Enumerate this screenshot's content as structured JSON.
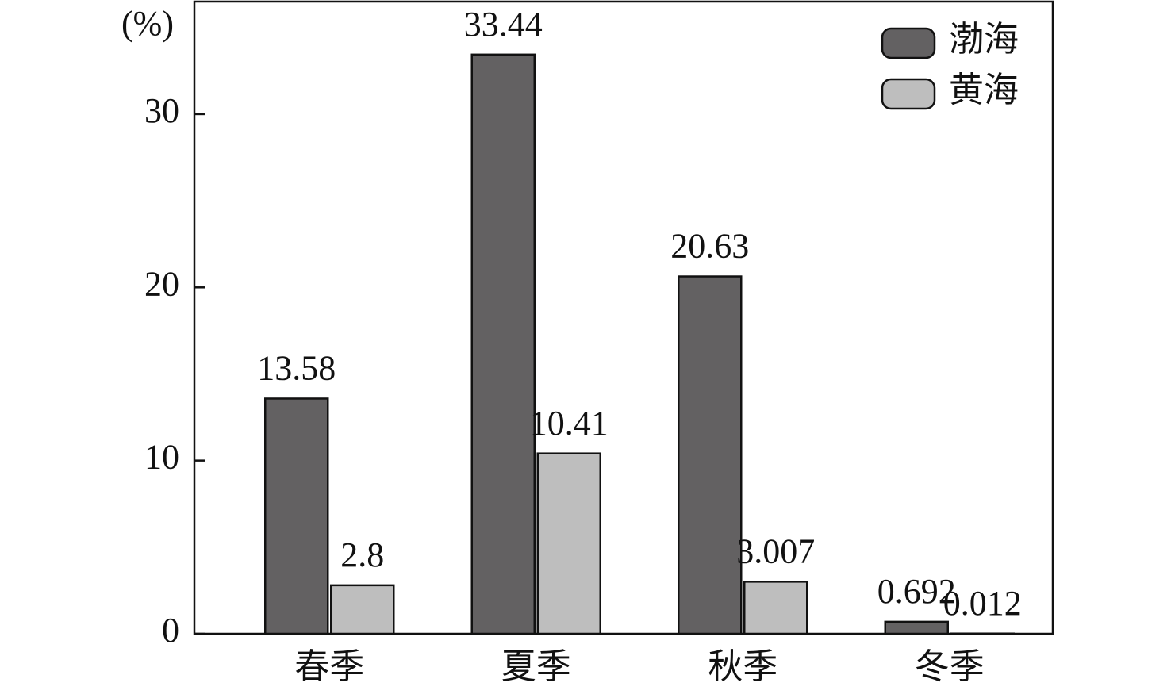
{
  "chart_data": {
    "type": "bar",
    "y_label": "(%)",
    "categories": [
      "春季",
      "夏季",
      "秋季",
      "冬季"
    ],
    "series": [
      {
        "name": "渤海",
        "color": "#636162",
        "values": [
          13.58,
          33.44,
          20.63,
          0.692
        ]
      },
      {
        "name": "黄海",
        "color": "#bebebe",
        "values": [
          2.8,
          10.41,
          3.007,
          0.012
        ]
      }
    ],
    "ylim": [
      0,
      36.5
    ],
    "yticks": [
      0,
      10,
      20,
      30
    ],
    "legend": "upper-right"
  }
}
